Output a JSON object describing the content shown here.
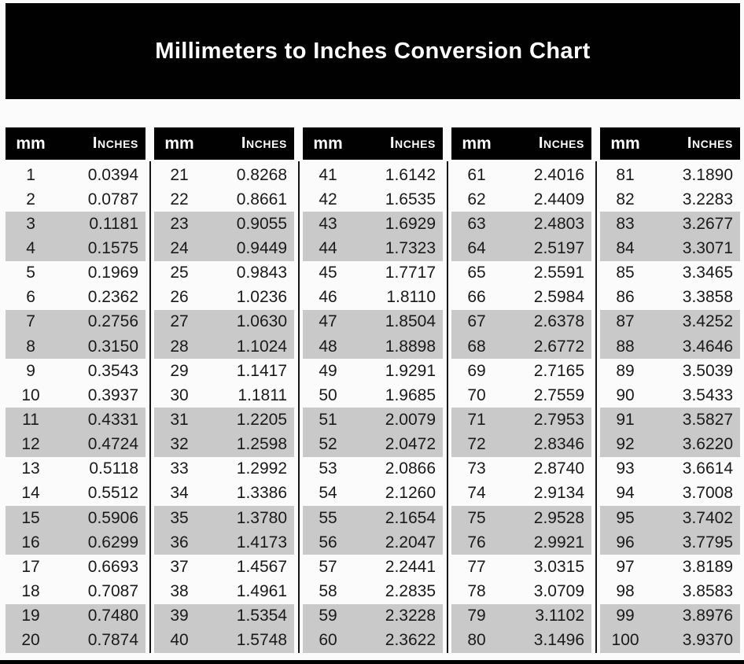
{
  "title": "Millimeters to Inches Conversion Chart",
  "table_header": {
    "mm": "mm",
    "inches": "Inches"
  },
  "colors": {
    "page_bg": "#fbfbfb",
    "banner_bg": "#010101",
    "banner_text": "#ffffff",
    "header_bg": "#010101",
    "header_text": "#ffffff",
    "row_shade": "#c9c9c9",
    "divider": "#141414",
    "body_text": "#1a1a1a"
  },
  "chart_data": {
    "type": "table",
    "title": "Millimeters to Inches Conversion Chart",
    "column_headers": [
      "mm",
      "Inches"
    ],
    "layout": "5 side-by-side sub-tables of 20 rows, rows shaded gray in alternating pairs",
    "tables": [
      {
        "rows": [
          [
            "1",
            "0.0394"
          ],
          [
            "2",
            "0.0787"
          ],
          [
            "3",
            "0.1181"
          ],
          [
            "4",
            "0.1575"
          ],
          [
            "5",
            "0.1969"
          ],
          [
            "6",
            "0.2362"
          ],
          [
            "7",
            "0.2756"
          ],
          [
            "8",
            "0.3150"
          ],
          [
            "9",
            "0.3543"
          ],
          [
            "10",
            "0.3937"
          ],
          [
            "11",
            "0.4331"
          ],
          [
            "12",
            "0.4724"
          ],
          [
            "13",
            "0.5118"
          ],
          [
            "14",
            "0.5512"
          ],
          [
            "15",
            "0.5906"
          ],
          [
            "16",
            "0.6299"
          ],
          [
            "17",
            "0.6693"
          ],
          [
            "18",
            "0.7087"
          ],
          [
            "19",
            "0.7480"
          ],
          [
            "20",
            "0.7874"
          ]
        ]
      },
      {
        "rows": [
          [
            "21",
            "0.8268"
          ],
          [
            "22",
            "0.8661"
          ],
          [
            "23",
            "0.9055"
          ],
          [
            "24",
            "0.9449"
          ],
          [
            "25",
            "0.9843"
          ],
          [
            "26",
            "1.0236"
          ],
          [
            "27",
            "1.0630"
          ],
          [
            "28",
            "1.1024"
          ],
          [
            "29",
            "1.1417"
          ],
          [
            "30",
            "1.1811"
          ],
          [
            "31",
            "1.2205"
          ],
          [
            "32",
            "1.2598"
          ],
          [
            "33",
            "1.2992"
          ],
          [
            "34",
            "1.3386"
          ],
          [
            "35",
            "1.3780"
          ],
          [
            "36",
            "1.4173"
          ],
          [
            "37",
            "1.4567"
          ],
          [
            "38",
            "1.4961"
          ],
          [
            "39",
            "1.5354"
          ],
          [
            "40",
            "1.5748"
          ]
        ]
      },
      {
        "rows": [
          [
            "41",
            "1.6142"
          ],
          [
            "42",
            "1.6535"
          ],
          [
            "43",
            "1.6929"
          ],
          [
            "44",
            "1.7323"
          ],
          [
            "45",
            "1.7717"
          ],
          [
            "46",
            "1.8110"
          ],
          [
            "47",
            "1.8504"
          ],
          [
            "48",
            "1.8898"
          ],
          [
            "49",
            "1.9291"
          ],
          [
            "50",
            "1.9685"
          ],
          [
            "51",
            "2.0079"
          ],
          [
            "52",
            "2.0472"
          ],
          [
            "53",
            "2.0866"
          ],
          [
            "54",
            "2.1260"
          ],
          [
            "55",
            "2.1654"
          ],
          [
            "56",
            "2.2047"
          ],
          [
            "57",
            "2.2441"
          ],
          [
            "58",
            "2.2835"
          ],
          [
            "59",
            "2.3228"
          ],
          [
            "60",
            "2.3622"
          ]
        ]
      },
      {
        "rows": [
          [
            "61",
            "2.4016"
          ],
          [
            "62",
            "2.4409"
          ],
          [
            "63",
            "2.4803"
          ],
          [
            "64",
            "2.5197"
          ],
          [
            "65",
            "2.5591"
          ],
          [
            "66",
            "2.5984"
          ],
          [
            "67",
            "2.6378"
          ],
          [
            "68",
            "2.6772"
          ],
          [
            "69",
            "2.7165"
          ],
          [
            "70",
            "2.7559"
          ],
          [
            "71",
            "2.7953"
          ],
          [
            "72",
            "2.8346"
          ],
          [
            "73",
            "2.8740"
          ],
          [
            "74",
            "2.9134"
          ],
          [
            "75",
            "2.9528"
          ],
          [
            "76",
            "2.9921"
          ],
          [
            "77",
            "3.0315"
          ],
          [
            "78",
            "3.0709"
          ],
          [
            "79",
            "3.1102"
          ],
          [
            "80",
            "3.1496"
          ]
        ]
      },
      {
        "rows": [
          [
            "81",
            "3.1890"
          ],
          [
            "82",
            "3.2283"
          ],
          [
            "83",
            "3.2677"
          ],
          [
            "84",
            "3.3071"
          ],
          [
            "85",
            "3.3465"
          ],
          [
            "86",
            "3.3858"
          ],
          [
            "87",
            "3.4252"
          ],
          [
            "88",
            "3.4646"
          ],
          [
            "89",
            "3.5039"
          ],
          [
            "90",
            "3.5433"
          ],
          [
            "91",
            "3.5827"
          ],
          [
            "92",
            "3.6220"
          ],
          [
            "93",
            "3.6614"
          ],
          [
            "94",
            "3.7008"
          ],
          [
            "95",
            "3.7402"
          ],
          [
            "96",
            "3.7795"
          ],
          [
            "97",
            "3.8189"
          ],
          [
            "98",
            "3.8583"
          ],
          [
            "99",
            "3.8976"
          ],
          [
            "100",
            "3.9370"
          ]
        ]
      }
    ]
  }
}
